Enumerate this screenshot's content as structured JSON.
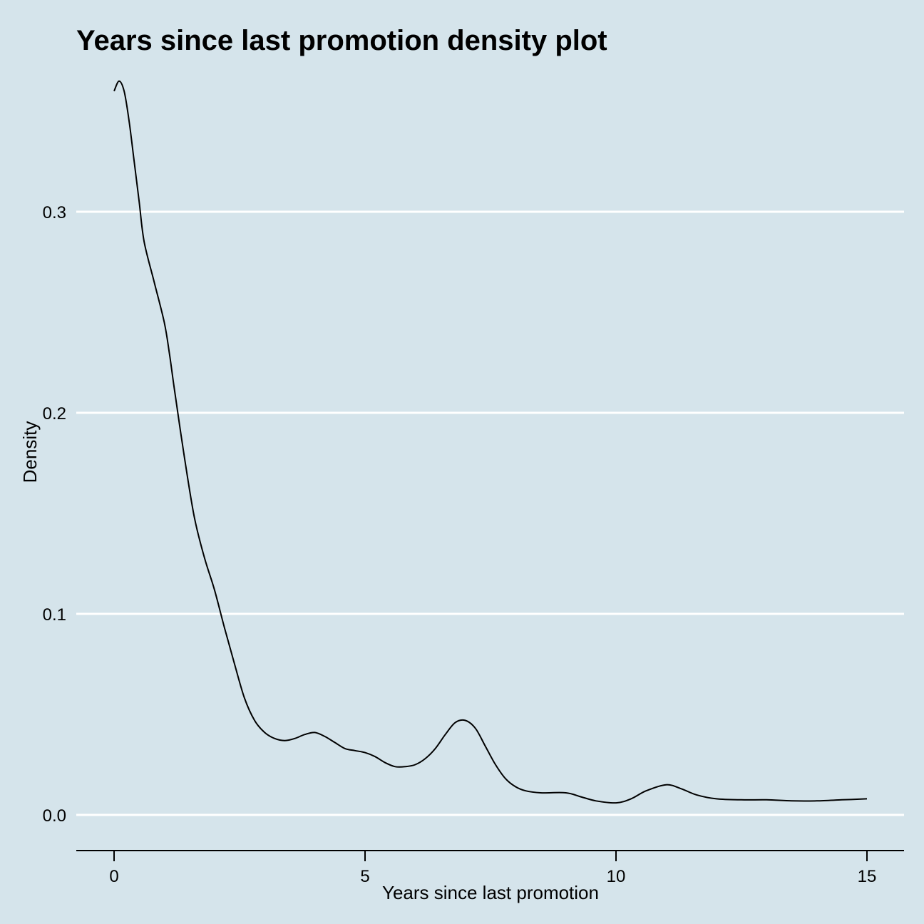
{
  "chart_data": {
    "type": "line",
    "title": "Years since last promotion density plot",
    "xlabel": "Years since last promotion",
    "ylabel": "Density",
    "xlim": [
      -0.75,
      15.75
    ],
    "ylim": [
      -0.018,
      0.375
    ],
    "x_ticks": [
      0,
      5,
      10,
      15
    ],
    "x_tick_labels": [
      "0",
      "5",
      "10",
      "15"
    ],
    "y_ticks": [
      0.0,
      0.1,
      0.2,
      0.3
    ],
    "y_tick_labels": [
      "0.0",
      "0.1",
      "0.2",
      "0.3"
    ],
    "grid": "horizontal major lines",
    "colors": {
      "background": "#d5e4eb",
      "grid": "#ffffff",
      "line": "#000000",
      "axis": "#000000"
    },
    "series": [
      {
        "x": [
          0.0,
          0.1,
          0.2,
          0.3,
          0.4,
          0.5,
          0.6,
          0.8,
          1.0,
          1.1,
          1.2,
          1.4,
          1.6,
          1.8,
          2.0,
          2.2,
          2.4,
          2.6,
          2.8,
          3.0,
          3.2,
          3.4,
          3.6,
          3.8,
          4.0,
          4.2,
          4.4,
          4.6,
          4.8,
          5.0,
          5.2,
          5.4,
          5.6,
          5.8,
          6.0,
          6.2,
          6.4,
          6.6,
          6.8,
          7.0,
          7.2,
          7.4,
          7.6,
          7.8,
          8.0,
          8.2,
          8.5,
          9.0,
          9.3,
          9.6,
          10.0,
          10.3,
          10.6,
          11.0,
          11.3,
          11.6,
          12.0,
          12.5,
          13.0,
          13.5,
          14.0,
          14.5,
          15.0
        ],
        "y": [
          0.36,
          0.365,
          0.36,
          0.345,
          0.325,
          0.305,
          0.285,
          0.265,
          0.245,
          0.23,
          0.212,
          0.178,
          0.148,
          0.128,
          0.112,
          0.093,
          0.075,
          0.058,
          0.047,
          0.041,
          0.038,
          0.037,
          0.038,
          0.04,
          0.041,
          0.039,
          0.036,
          0.033,
          0.032,
          0.031,
          0.029,
          0.026,
          0.024,
          0.024,
          0.025,
          0.028,
          0.033,
          0.04,
          0.046,
          0.047,
          0.043,
          0.034,
          0.025,
          0.018,
          0.014,
          0.012,
          0.011,
          0.011,
          0.009,
          0.007,
          0.006,
          0.008,
          0.012,
          0.015,
          0.013,
          0.01,
          0.008,
          0.0075,
          0.0075,
          0.007,
          0.007,
          0.0075,
          0.008
        ]
      }
    ]
  }
}
